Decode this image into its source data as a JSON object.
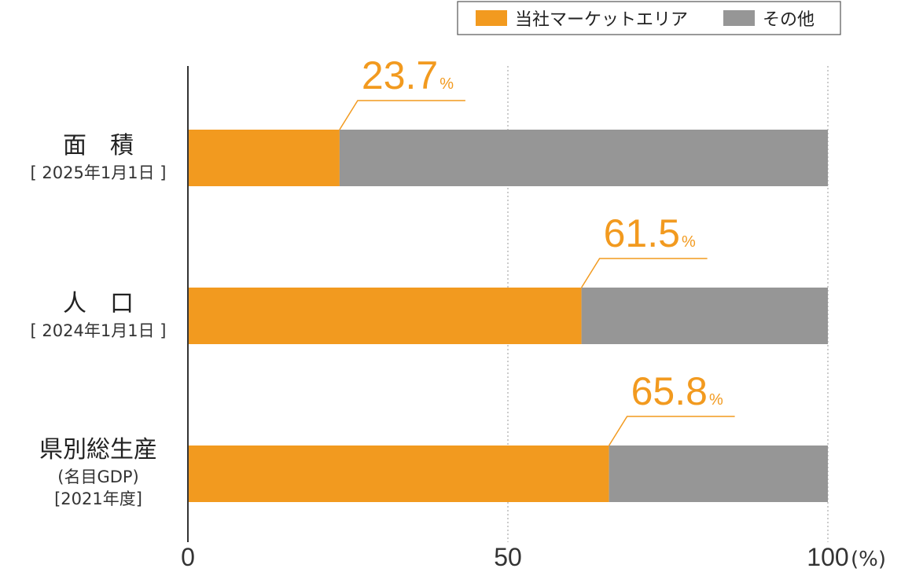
{
  "chart_data": {
    "type": "stacked-barh",
    "categories": [
      "面　積",
      "人　口",
      "県別総生産"
    ],
    "category_sublabels": [
      [
        "[ 2025年1月1日 ]"
      ],
      [
        "[ 2024年1月1日 ]"
      ],
      [
        "(名目GDP)",
        "[2021年度]"
      ]
    ],
    "series": [
      {
        "name": "当社マーケットエリア",
        "color": "#f29a1f",
        "values": [
          23.7,
          61.5,
          65.8
        ]
      },
      {
        "name": "その他",
        "color": "#969696",
        "values": [
          76.3,
          38.5,
          34.2
        ]
      }
    ],
    "value_unit": "%",
    "x_label": "(%)",
    "xlim": [
      0,
      100
    ],
    "xticks": [
      0,
      50,
      100
    ],
    "grid": true
  }
}
